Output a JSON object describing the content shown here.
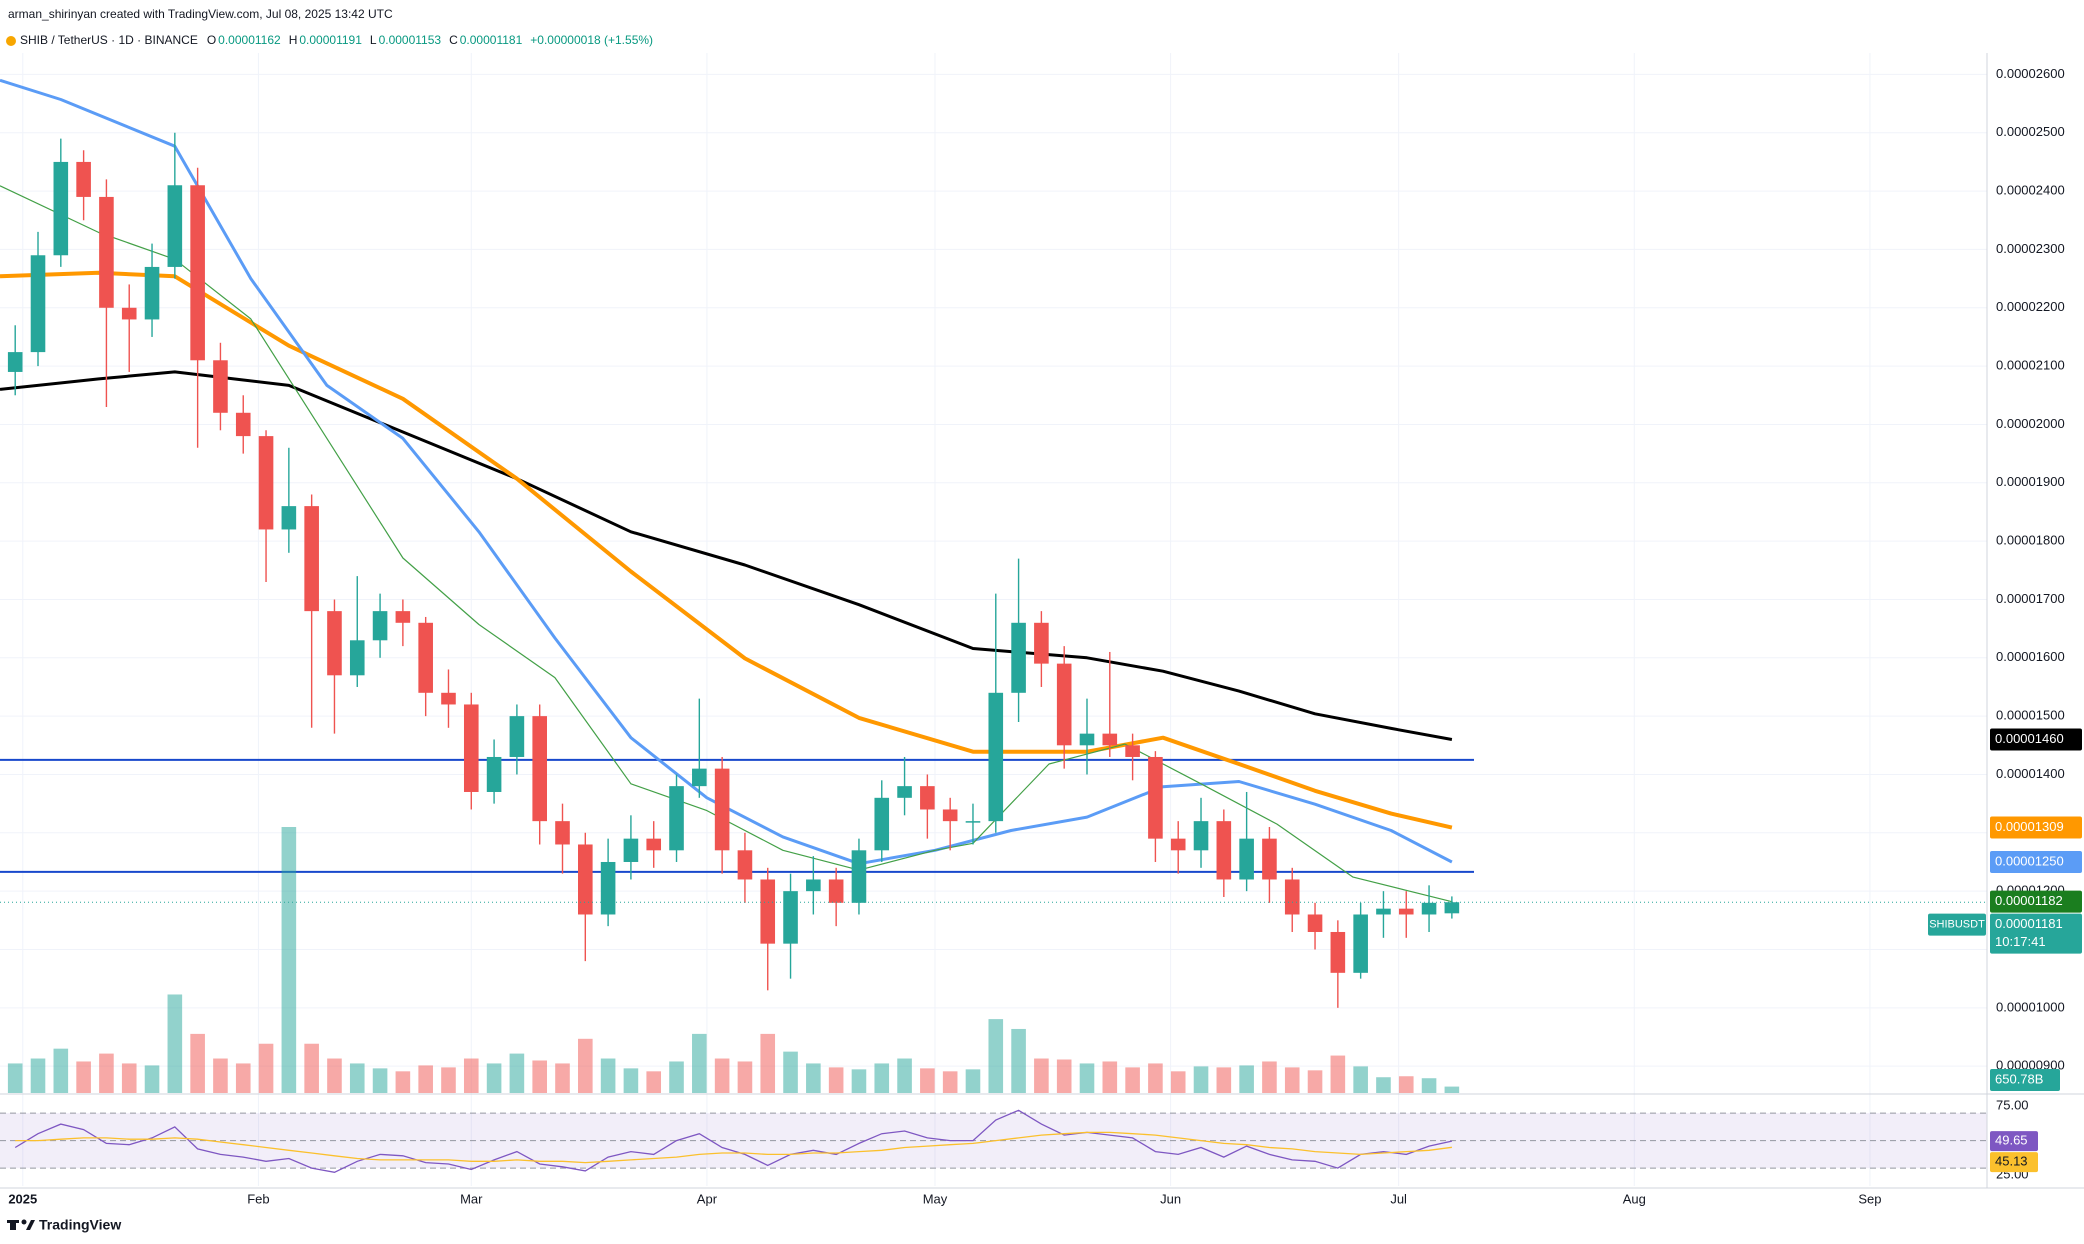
{
  "header": {
    "attribution": "arman_shirinyan created with TradingView.com, Jul 08, 2025 13:42 UTC",
    "symbol": "SHIB / TetherUS · 1D · BINANCE",
    "ohlc": [
      {
        "key": "O",
        "value": "0.00001162"
      },
      {
        "key": "H",
        "value": "0.00001191"
      },
      {
        "key": "L",
        "value": "0.00001153"
      },
      {
        "key": "C",
        "value": "0.00001181"
      }
    ],
    "change": "+0.00000018 (+1.55%)"
  },
  "chart_data": [
    {
      "type": "candlestick",
      "up_color": "#26a69a",
      "down_color": "#ef5350",
      "x": [
        -1,
        2,
        5,
        8,
        11,
        14,
        17,
        20,
        23,
        26,
        29,
        32,
        35,
        38,
        41,
        44,
        47,
        50,
        53,
        56,
        59,
        62,
        65,
        68,
        71,
        74,
        77,
        80,
        83,
        86,
        89,
        92,
        95,
        98,
        101,
        104,
        107,
        110,
        113,
        116,
        119,
        122,
        125,
        128,
        131,
        134,
        137,
        140,
        143,
        146,
        149,
        152,
        155,
        158,
        161,
        164,
        167,
        170,
        173,
        176,
        179,
        182,
        185,
        188
      ],
      "open": [
        2.09e-05,
        2.124e-05,
        2.29e-05,
        2.45e-05,
        2.39e-05,
        2.2e-05,
        2.18e-05,
        2.27e-05,
        2.41e-05,
        2.11e-05,
        2.02e-05,
        1.98e-05,
        1.82e-05,
        1.86e-05,
        1.68e-05,
        1.57e-05,
        1.63e-05,
        1.68e-05,
        1.66e-05,
        1.54e-05,
        1.52e-05,
        1.37e-05,
        1.43e-05,
        1.5e-05,
        1.32e-05,
        1.28e-05,
        1.16e-05,
        1.25e-05,
        1.29e-05,
        1.27e-05,
        1.38e-05,
        1.41e-05,
        1.27e-05,
        1.22e-05,
        1.11e-05,
        1.2e-05,
        1.22e-05,
        1.18e-05,
        1.27e-05,
        1.36e-05,
        1.38e-05,
        1.34e-05,
        1.32e-05,
        1.32e-05,
        1.54e-05,
        1.66e-05,
        1.59e-05,
        1.45e-05,
        1.47e-05,
        1.45e-05,
        1.43e-05,
        1.29e-05,
        1.27e-05,
        1.32e-05,
        1.22e-05,
        1.29e-05,
        1.22e-05,
        1.16e-05,
        1.13e-05,
        1.06e-05,
        1.16e-05,
        1.17e-05,
        1.16e-05,
        1.162e-05
      ],
      "high": [
        2.17e-05,
        2.33e-05,
        2.49e-05,
        2.47e-05,
        2.42e-05,
        2.24e-05,
        2.31e-05,
        2.5e-05,
        2.44e-05,
        2.14e-05,
        2.05e-05,
        1.99e-05,
        1.96e-05,
        1.88e-05,
        1.7e-05,
        1.74e-05,
        1.71e-05,
        1.7e-05,
        1.67e-05,
        1.58e-05,
        1.54e-05,
        1.46e-05,
        1.52e-05,
        1.52e-05,
        1.35e-05,
        1.3e-05,
        1.29e-05,
        1.33e-05,
        1.32e-05,
        1.4e-05,
        1.53e-05,
        1.43e-05,
        1.3e-05,
        1.24e-05,
        1.23e-05,
        1.26e-05,
        1.24e-05,
        1.29e-05,
        1.39e-05,
        1.43e-05,
        1.4e-05,
        1.36e-05,
        1.35e-05,
        1.71e-05,
        1.77e-05,
        1.68e-05,
        1.62e-05,
        1.53e-05,
        1.61e-05,
        1.47e-05,
        1.44e-05,
        1.32e-05,
        1.36e-05,
        1.34e-05,
        1.37e-05,
        1.31e-05,
        1.24e-05,
        1.18e-05,
        1.15e-05,
        1.18e-05,
        1.2e-05,
        1.2e-05,
        1.21e-05,
        1.191e-05
      ],
      "low": [
        2.05e-05,
        2.1e-05,
        2.27e-05,
        2.35e-05,
        2.03e-05,
        2.09e-05,
        2.15e-05,
        2.25e-05,
        1.96e-05,
        1.99e-05,
        1.95e-05,
        1.73e-05,
        1.78e-05,
        1.48e-05,
        1.47e-05,
        1.55e-05,
        1.6e-05,
        1.62e-05,
        1.5e-05,
        1.48e-05,
        1.34e-05,
        1.35e-05,
        1.4e-05,
        1.28e-05,
        1.23e-05,
        1.08e-05,
        1.14e-05,
        1.22e-05,
        1.24e-05,
        1.25e-05,
        1.36e-05,
        1.23e-05,
        1.18e-05,
        1.03e-05,
        1.05e-05,
        1.16e-05,
        1.14e-05,
        1.16e-05,
        1.25e-05,
        1.33e-05,
        1.29e-05,
        1.27e-05,
        1.28e-05,
        1.3e-05,
        1.49e-05,
        1.55e-05,
        1.41e-05,
        1.4e-05,
        1.43e-05,
        1.39e-05,
        1.25e-05,
        1.23e-05,
        1.24e-05,
        1.19e-05,
        1.2e-05,
        1.18e-05,
        1.13e-05,
        1.1e-05,
        1e-05,
        1.05e-05,
        1.12e-05,
        1.12e-05,
        1.13e-05,
        1.153e-05
      ],
      "close": [
        2.124e-05,
        2.29e-05,
        2.45e-05,
        2.39e-05,
        2.2e-05,
        2.18e-05,
        2.27e-05,
        2.41e-05,
        2.11e-05,
        2.02e-05,
        1.98e-05,
        1.82e-05,
        1.86e-05,
        1.68e-05,
        1.57e-05,
        1.63e-05,
        1.68e-05,
        1.66e-05,
        1.54e-05,
        1.52e-05,
        1.37e-05,
        1.43e-05,
        1.5e-05,
        1.32e-05,
        1.28e-05,
        1.16e-05,
        1.25e-05,
        1.29e-05,
        1.27e-05,
        1.38e-05,
        1.41e-05,
        1.27e-05,
        1.22e-05,
        1.11e-05,
        1.2e-05,
        1.22e-05,
        1.18e-05,
        1.27e-05,
        1.36e-05,
        1.38e-05,
        1.34e-05,
        1.32e-05,
        1.32e-05,
        1.54e-05,
        1.66e-05,
        1.59e-05,
        1.45e-05,
        1.47e-05,
        1.45e-05,
        1.43e-05,
        1.29e-05,
        1.27e-05,
        1.32e-05,
        1.22e-05,
        1.29e-05,
        1.22e-05,
        1.16e-05,
        1.13e-05,
        1.06e-05,
        1.16e-05,
        1.17e-05,
        1.16e-05,
        1.18e-05,
        1.181e-05
      ],
      "close_label": "0.00001181",
      "symbol_tag": "SHIBUSDT",
      "countdown": "10:17:41",
      "volume": {
        "values": [
          3000,
          3500,
          4500,
          3200,
          4000,
          3000,
          2800,
          10000,
          6000,
          3500,
          3000,
          5000,
          27000,
          5000,
          3500,
          3000,
          2500,
          2200,
          2800,
          2600,
          3500,
          3000,
          4000,
          3300,
          3000,
          5500,
          3500,
          2500,
          2200,
          3200,
          6000,
          3500,
          3200,
          6000,
          4200,
          3000,
          2600,
          2400,
          3000,
          3500,
          2500,
          2200,
          2400,
          7500,
          6500,
          3500,
          3400,
          3000,
          3200,
          2600,
          3000,
          2200,
          2700,
          2600,
          2800,
          3200,
          2600,
          2300,
          3800,
          2700,
          1600,
          1700,
          1500,
          650.78
        ],
        "last_label": "650.78B"
      },
      "overlays": [
        {
          "color": "#000000",
          "width": 3,
          "x": [
            -3,
            10,
            20,
            35,
            50,
            65,
            80,
            95,
            110,
            125,
            140,
            150,
            160,
            170,
            180,
            188
          ],
          "values": [
            2.06e-05,
            2.078e-05,
            2.09e-05,
            2.067e-05,
            1.987e-05,
            1.907e-05,
            1.816e-05,
            1.759e-05,
            1.691e-05,
            1.616e-05,
            1.6e-05,
            1.577e-05,
            1.543e-05,
            1.504e-05,
            1.479e-05,
            1.46e-05
          ],
          "last_label": "0.00001460"
        },
        {
          "color": "#ff9800",
          "width": 4,
          "x": [
            -3,
            10,
            20,
            35,
            50,
            65,
            80,
            95,
            110,
            125,
            140,
            150,
            160,
            170,
            180,
            188
          ],
          "values": [
            2.254e-05,
            2.26e-05,
            2.254e-05,
            2.135e-05,
            2.044e-05,
            1.907e-05,
            1.748e-05,
            1.599e-05,
            1.497e-05,
            1.439e-05,
            1.439e-05,
            1.463e-05,
            1.418e-05,
            1.372e-05,
            1.333e-05,
            1.309e-05
          ],
          "last_label": "0.00001309"
        },
        {
          "color": "#5b9cf6",
          "width": 3,
          "x": [
            -3,
            5,
            20,
            30,
            40,
            50,
            60,
            70,
            80,
            90,
            100,
            110,
            120,
            130,
            140,
            150,
            160,
            170,
            180,
            188
          ],
          "values": [
            2.59e-05,
            2.557e-05,
            2.477e-05,
            2.25e-05,
            2.067e-05,
            1.976e-05,
            1.816e-05,
            1.634e-05,
            1.463e-05,
            1.36e-05,
            1.293e-05,
            1.247e-05,
            1.27e-05,
            1.304e-05,
            1.327e-05,
            1.379e-05,
            1.388e-05,
            1.349e-05,
            1.304e-05,
            1.25e-05
          ],
          "last_label": "0.00001250"
        },
        {
          "color": "#43a047",
          "width": 1.2,
          "x": [
            -3,
            10,
            20,
            30,
            40,
            50,
            60,
            70,
            80,
            90,
            100,
            110,
            120,
            125,
            135,
            145,
            155,
            165,
            175,
            188
          ],
          "values": [
            2.409e-05,
            2.329e-05,
            2.283e-05,
            2.181e-05,
            1.976e-05,
            1.771e-05,
            1.657e-05,
            1.566e-05,
            1.384e-05,
            1.338e-05,
            1.27e-05,
            1.236e-05,
            1.27e-05,
            1.282e-05,
            1.418e-05,
            1.452e-05,
            1.384e-05,
            1.315e-05,
            1.224e-05,
            1.182e-05
          ],
          "last_label": "0.00001182",
          "tag_color": "#1b7e1f"
        }
      ],
      "hlines": [
        {
          "value": 1.425e-05,
          "color": "#1848cc"
        },
        {
          "value": 1.233e-05,
          "color": "#1848cc"
        }
      ],
      "xlim": [
        -3,
        258.4
      ],
      "xticks": [
        {
          "value": 0,
          "label": "2025"
        },
        {
          "value": 31,
          "label": "Feb"
        },
        {
          "value": 59,
          "label": "Mar"
        },
        {
          "value": 90,
          "label": "Apr"
        },
        {
          "value": 120,
          "label": "May"
        },
        {
          "value": 151,
          "label": "Jun"
        },
        {
          "value": 181,
          "label": "Jul"
        },
        {
          "value": 212,
          "label": "Aug"
        },
        {
          "value": 243,
          "label": "Sep"
        }
      ],
      "ylim": [
        8.54e-06,
        2.635e-05
      ],
      "yticks": [
        {
          "value": 9e-06,
          "label": "0.00000900"
        },
        {
          "value": 1e-05,
          "label": "0.00001000"
        },
        {
          "value": 1.1e-05,
          "label": "0.00001100"
        },
        {
          "value": 1.2e-05,
          "label": "0.00001200"
        },
        {
          "value": 1.3e-05,
          "label": "0.00001300"
        },
        {
          "value": 1.4e-05,
          "label": "0.00001400"
        },
        {
          "value": 1.5e-05,
          "label": "0.00001500"
        },
        {
          "value": 1.6e-05,
          "label": "0.00001600"
        },
        {
          "value": 1.7e-05,
          "label": "0.00001700"
        },
        {
          "value": 1.8e-05,
          "label": "0.00001800"
        },
        {
          "value": 1.9e-05,
          "label": "0.00001900"
        },
        {
          "value": 2e-05,
          "label": "0.00002000"
        },
        {
          "value": 2.1e-05,
          "label": "0.00002100"
        },
        {
          "value": 2.2e-05,
          "label": "0.00002200"
        },
        {
          "value": 2.3e-05,
          "label": "0.00002300"
        },
        {
          "value": 2.4e-05,
          "label": "0.00002400"
        },
        {
          "value": 2.5e-05,
          "label": "0.00002500"
        },
        {
          "value": 2.6e-05,
          "label": "0.00002600"
        }
      ],
      "grid": true
    },
    {
      "type": "line",
      "x": [
        -1,
        2,
        5,
        8,
        11,
        14,
        17,
        20,
        23,
        26,
        29,
        32,
        35,
        38,
        41,
        44,
        47,
        50,
        53,
        56,
        59,
        62,
        65,
        68,
        71,
        74,
        77,
        80,
        83,
        86,
        89,
        92,
        95,
        98,
        101,
        104,
        107,
        110,
        113,
        116,
        119,
        122,
        125,
        128,
        131,
        134,
        137,
        140,
        143,
        146,
        149,
        152,
        155,
        158,
        161,
        164,
        167,
        170,
        173,
        176,
        179,
        182,
        185,
        188
      ],
      "series": [
        {
          "color": "#7e57c2",
          "tag_text": "#ffffff",
          "values": [
            45,
            55,
            62,
            58,
            48,
            47,
            52,
            60,
            44,
            40,
            38,
            35,
            37,
            30,
            27,
            35,
            40,
            39,
            34,
            33,
            29,
            36,
            42,
            33,
            31,
            28,
            38,
            42,
            40,
            50,
            55,
            45,
            40,
            32,
            40,
            43,
            40,
            48,
            55,
            57,
            52,
            50,
            50,
            65,
            72,
            62,
            54,
            56,
            54,
            52,
            42,
            40,
            45,
            38,
            46,
            40,
            36,
            35,
            30,
            40,
            42,
            40,
            46,
            49.65
          ]
        },
        {
          "color": "#fbc02d",
          "tag_text": "#131722",
          "values": [
            50,
            50,
            51,
            52,
            52,
            51,
            51,
            52,
            51,
            49,
            47,
            45,
            43,
            41,
            39,
            37,
            36,
            36,
            36,
            36,
            35,
            35,
            36,
            35,
            35,
            34,
            35,
            36,
            37,
            38,
            40,
            41,
            41,
            40,
            40,
            41,
            41,
            42,
            43,
            45,
            46,
            47,
            48,
            50,
            52,
            54,
            55,
            56,
            56,
            55,
            54,
            52,
            50,
            48,
            47,
            45,
            44,
            42,
            41,
            40,
            41,
            42,
            43,
            45.13
          ]
        }
      ],
      "levels": [
        70,
        50,
        30
      ],
      "band_color": "rgba(126,87,194,0.10)",
      "xlim": [
        -3,
        258.4
      ],
      "ylim": [
        19.2,
        81.7
      ],
      "yticks": [
        {
          "value": 75,
          "label": "75.00"
        },
        {
          "value": 25,
          "label": "25.00"
        }
      ]
    }
  ],
  "footer": {
    "brand": "TradingView"
  }
}
